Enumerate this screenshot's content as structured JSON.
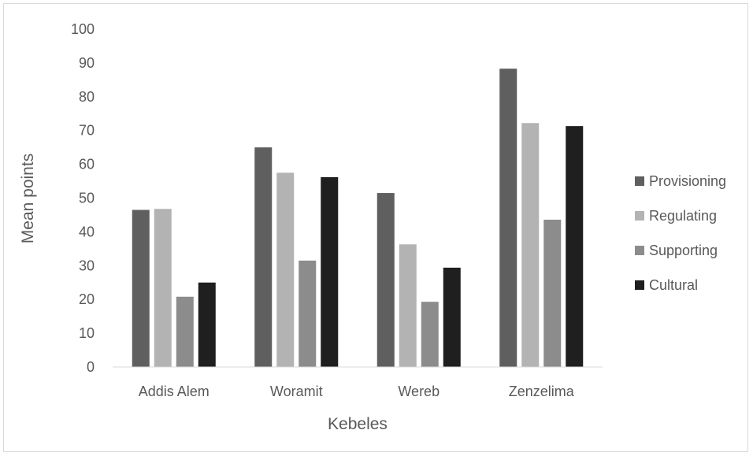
{
  "chart_data": {
    "type": "bar",
    "xlabel": "Kebeles",
    "ylabel": "Mean points",
    "ylim": [
      0,
      100
    ],
    "yticks": [
      0,
      10,
      20,
      30,
      40,
      50,
      60,
      70,
      80,
      90,
      100
    ],
    "categories": [
      "Addis Alem",
      "Woramit",
      "Wereb",
      "Zenzelima"
    ],
    "series": [
      {
        "name": "Provisioning",
        "color": "#5f5f5f",
        "values": [
          46.5,
          65,
          51.5,
          88.3
        ]
      },
      {
        "name": "Regulating",
        "color": "#b3b3b3",
        "values": [
          46.8,
          57.5,
          36.3,
          72.2
        ]
      },
      {
        "name": "Supporting",
        "color": "#8c8c8c",
        "values": [
          20.8,
          31.5,
          19.3,
          43.6
        ]
      },
      {
        "name": "Cultural",
        "color": "#1f1f1f",
        "values": [
          25,
          56.2,
          29.4,
          71.3
        ]
      }
    ],
    "grid": false,
    "legend_position": "right"
  }
}
